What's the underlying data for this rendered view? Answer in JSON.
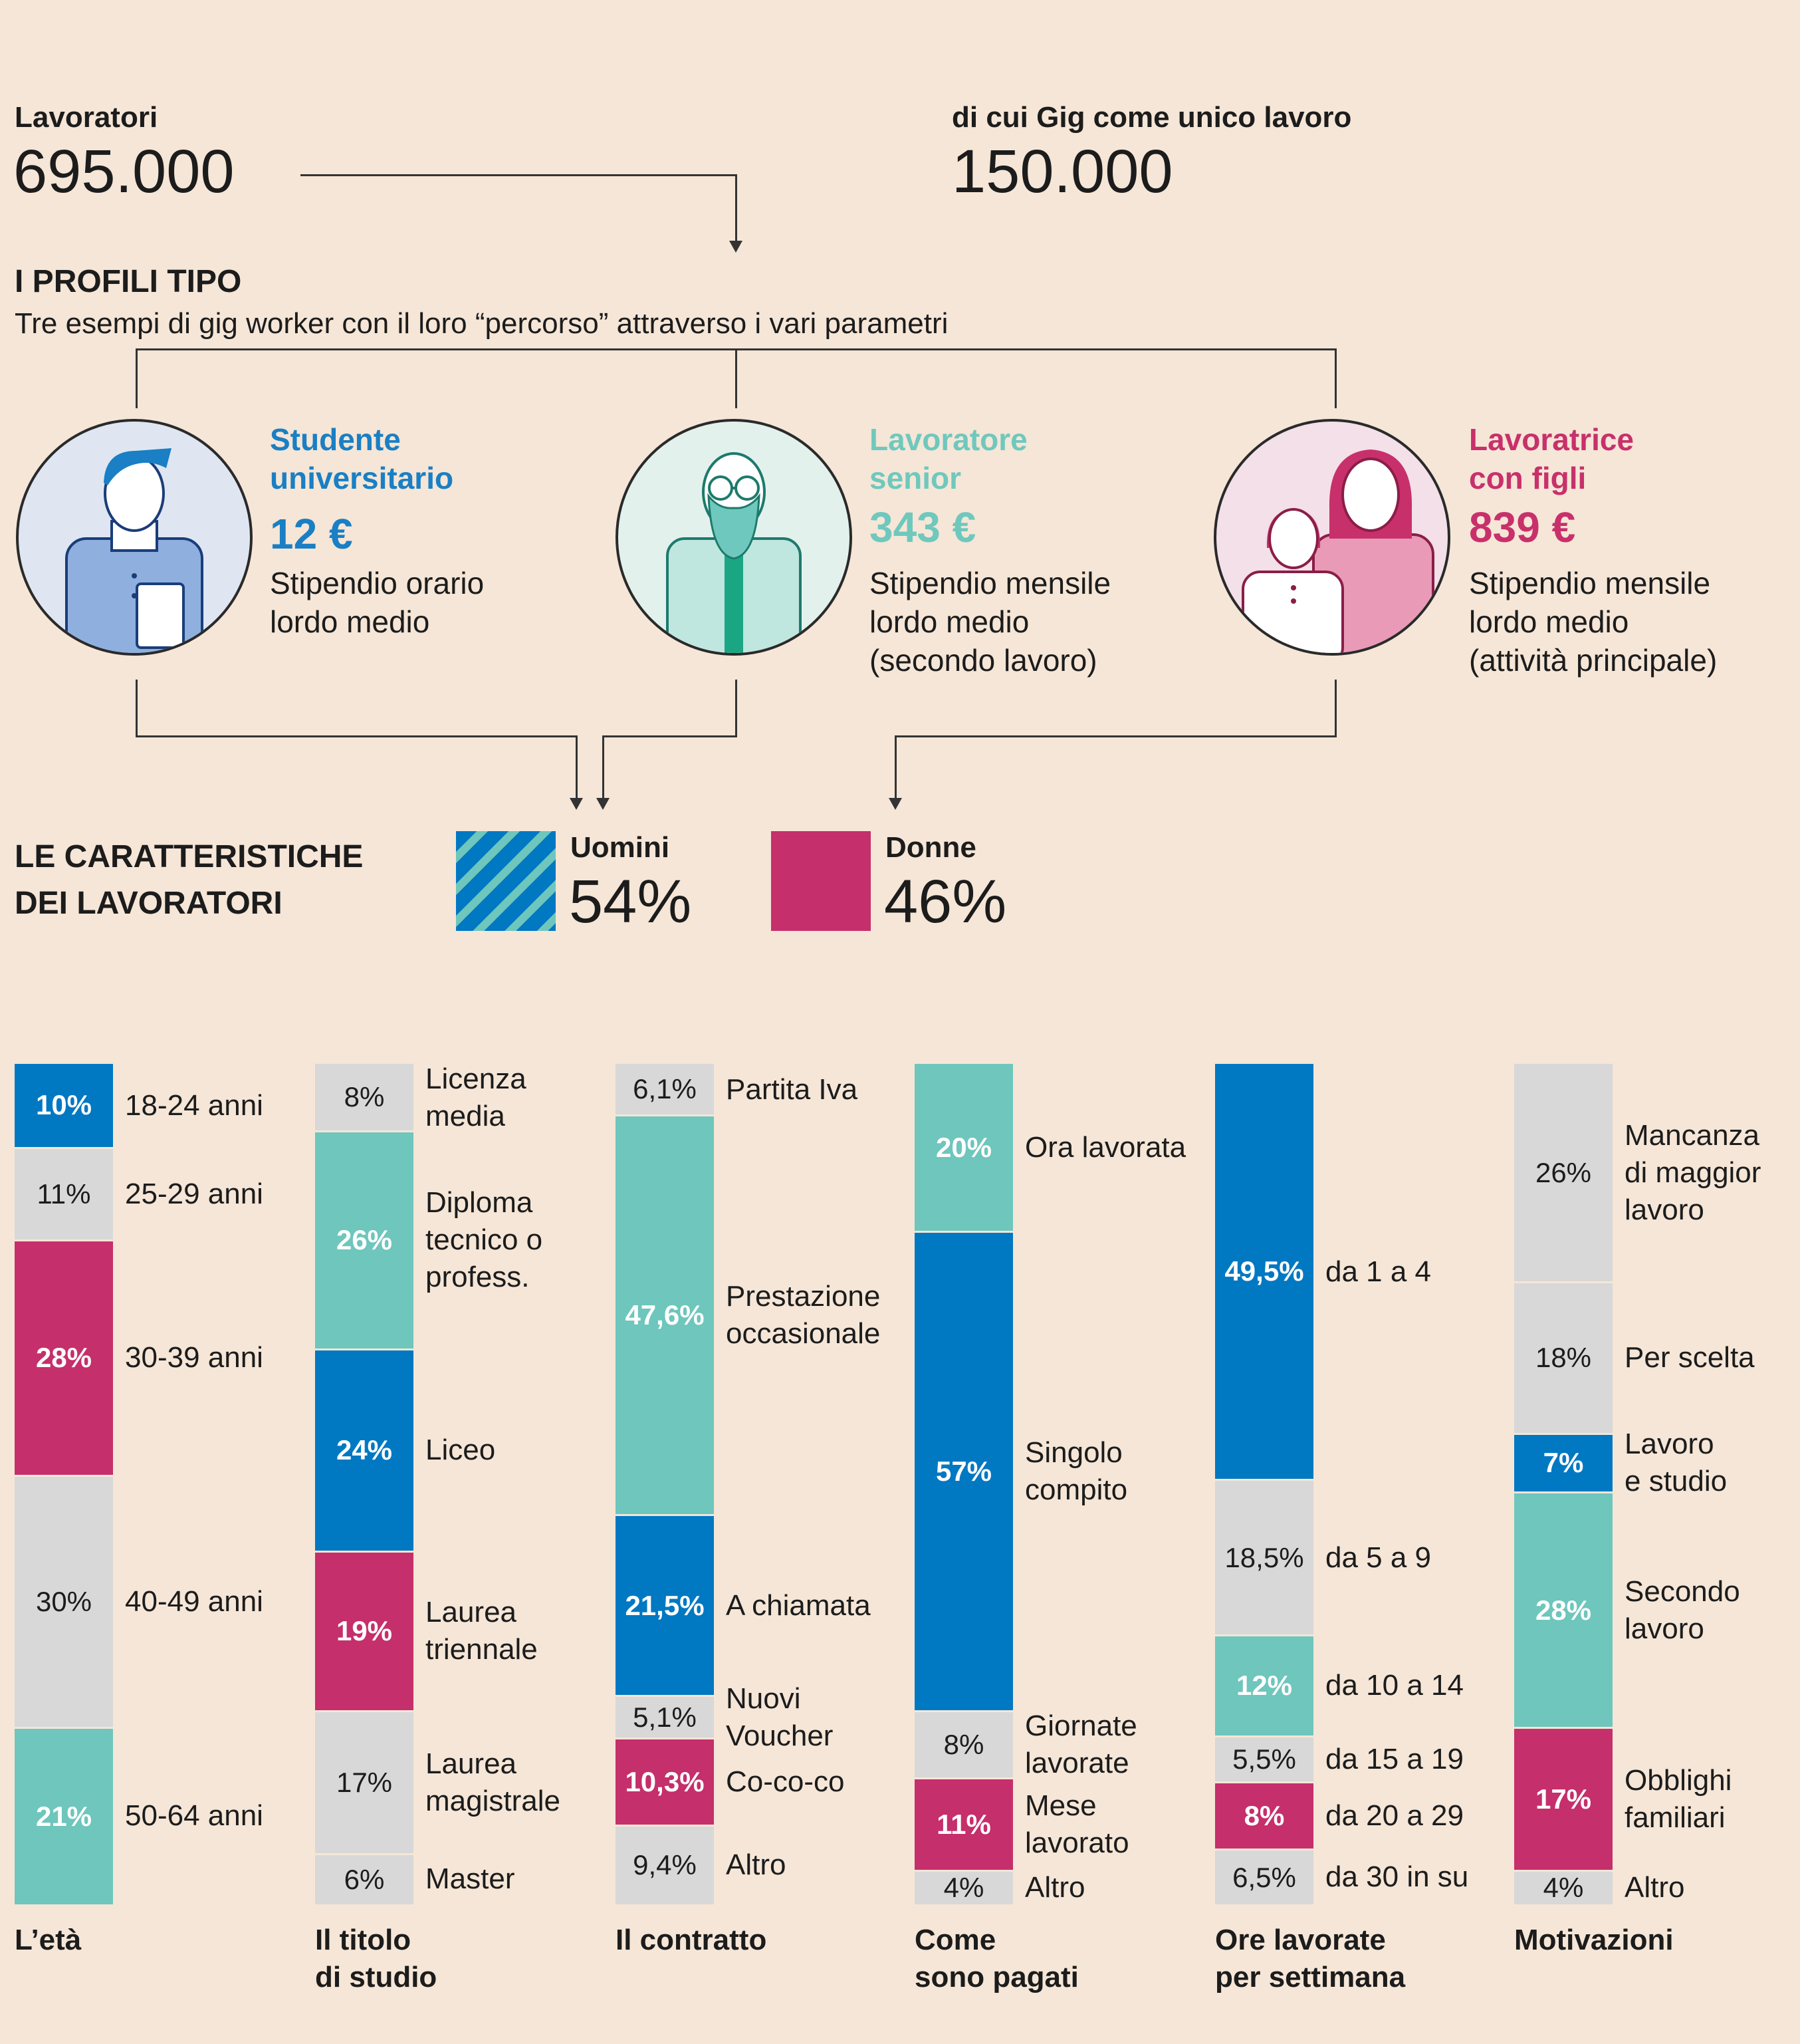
{
  "header": {
    "workers_label": "Lavoratori",
    "workers_value": "695.000",
    "gig_label": "di cui Gig come unico lavoro",
    "gig_value": "150.000"
  },
  "profiles": {
    "title": "I PROFILI TIPO",
    "subtitle": "Tre esempi di gig worker con il loro “percorso” attraverso i vari parametri",
    "items": [
      {
        "title1": "Studente",
        "title2": "universitario",
        "value": "12 €",
        "desc1": "Stipendio orario",
        "desc2": "lordo medio",
        "desc3": "",
        "color": "#1a7fc4"
      },
      {
        "title1": "Lavoratore",
        "title2": "senior",
        "value": "343 €",
        "desc1": "Stipendio mensile",
        "desc2": "lordo medio",
        "desc3": "(secondo lavoro)",
        "color": "#6fc8bd"
      },
      {
        "title1": "Lavoratrice",
        "title2": "con figli",
        "value": "839 €",
        "desc1": "Stipendio mensile",
        "desc2": "lordo medio",
        "desc3": "(attività principale)",
        "color": "#c8306b"
      }
    ]
  },
  "characteristics": {
    "title1": "LE CARATTERISTICHE",
    "title2": "DEI LAVORATORI",
    "men_label": "Uomini",
    "men_value": "54%",
    "women_label": "Donne",
    "women_value": "46%"
  },
  "colors": {
    "blue": "#0078c2",
    "teal": "#6ec6bc",
    "magenta": "#c52f6b",
    "gray": "#d8d8d8"
  },
  "chart_data": [
    {
      "type": "bar",
      "title": "L’età",
      "stacked": true,
      "segments": [
        {
          "value": 10,
          "label": "10%",
          "category": "18-24 anni",
          "color": "blue"
        },
        {
          "value": 11,
          "label": "11%",
          "category": "25-29 anni",
          "color": "gray"
        },
        {
          "value": 28,
          "label": "28%",
          "category": "30-39 anni",
          "color": "magenta"
        },
        {
          "value": 30,
          "label": "30%",
          "category": "40-49 anni",
          "color": "gray"
        },
        {
          "value": 21,
          "label": "21%",
          "category": "50-64 anni",
          "color": "teal"
        }
      ]
    },
    {
      "type": "bar",
      "title": "Il titolo di studio",
      "stacked": true,
      "segments": [
        {
          "value": 8,
          "label": "8%",
          "category": "Licenza media",
          "color": "gray"
        },
        {
          "value": 26,
          "label": "26%",
          "category": "Diploma tecnico o profess.",
          "color": "teal"
        },
        {
          "value": 24,
          "label": "24%",
          "category": "Liceo",
          "color": "blue"
        },
        {
          "value": 19,
          "label": "19%",
          "category": "Laurea triennale",
          "color": "magenta"
        },
        {
          "value": 17,
          "label": "17%",
          "category": "Laurea magistrale",
          "color": "gray"
        },
        {
          "value": 6,
          "label": "6%",
          "category": "Master",
          "color": "gray"
        }
      ]
    },
    {
      "type": "bar",
      "title": "Il contratto",
      "stacked": true,
      "segments": [
        {
          "value": 6.1,
          "label": "6,1%",
          "category": "Partita Iva",
          "color": "gray"
        },
        {
          "value": 47.6,
          "label": "47,6%",
          "category": "Prestazione occasionale",
          "color": "teal"
        },
        {
          "value": 21.5,
          "label": "21,5%",
          "category": "A chiamata",
          "color": "blue"
        },
        {
          "value": 5.1,
          "label": "5,1%",
          "category": "Nuovi Voucher",
          "color": "gray"
        },
        {
          "value": 10.3,
          "label": "10,3%",
          "category": "Co-co-co",
          "color": "magenta"
        },
        {
          "value": 9.4,
          "label": "9,4%",
          "category": "Altro",
          "color": "gray"
        }
      ]
    },
    {
      "type": "bar",
      "title": "Come sono pagati",
      "stacked": true,
      "segments": [
        {
          "value": 20,
          "label": "20%",
          "category": "Ora lavorata",
          "color": "teal"
        },
        {
          "value": 57,
          "label": "57%",
          "category": "Singolo compito",
          "color": "blue"
        },
        {
          "value": 8,
          "label": "8%",
          "category": "Giornate lavorate",
          "color": "gray"
        },
        {
          "value": 11,
          "label": "11%",
          "category": "Mese lavorato",
          "color": "magenta"
        },
        {
          "value": 4,
          "label": "4%",
          "category": "Altro",
          "color": "gray"
        }
      ]
    },
    {
      "type": "bar",
      "title": "Ore lavorate per settimana",
      "stacked": true,
      "segments": [
        {
          "value": 49.5,
          "label": "49,5%",
          "category": "da 1 a 4",
          "color": "blue"
        },
        {
          "value": 18.5,
          "label": "18,5%",
          "category": "da 5 a 9",
          "color": "gray"
        },
        {
          "value": 12,
          "label": "12%",
          "category": "da 10 a 14",
          "color": "teal"
        },
        {
          "value": 5.5,
          "label": "5,5%",
          "category": "da 15 a 19",
          "color": "gray"
        },
        {
          "value": 8,
          "label": "8%",
          "category": "da 20 a 29",
          "color": "magenta"
        },
        {
          "value": 6.5,
          "label": "6,5%",
          "category": "da 30 in su",
          "color": "gray"
        }
      ]
    },
    {
      "type": "bar",
      "title": "Motivazioni",
      "stacked": true,
      "segments": [
        {
          "value": 26,
          "label": "26%",
          "category": "Mancanza di maggior lavoro",
          "color": "gray"
        },
        {
          "value": 18,
          "label": "18%",
          "category": "Per scelta",
          "color": "gray"
        },
        {
          "value": 7,
          "label": "7%",
          "category": "Lavoro e studio",
          "color": "blue"
        },
        {
          "value": 28,
          "label": "28%",
          "category": "Secondo lavoro",
          "color": "teal"
        },
        {
          "value": 17,
          "label": "17%",
          "category": "Obblighi familiari",
          "color": "magenta"
        },
        {
          "value": 4,
          "label": "4%",
          "category": "Altro",
          "color": "gray"
        }
      ]
    }
  ]
}
